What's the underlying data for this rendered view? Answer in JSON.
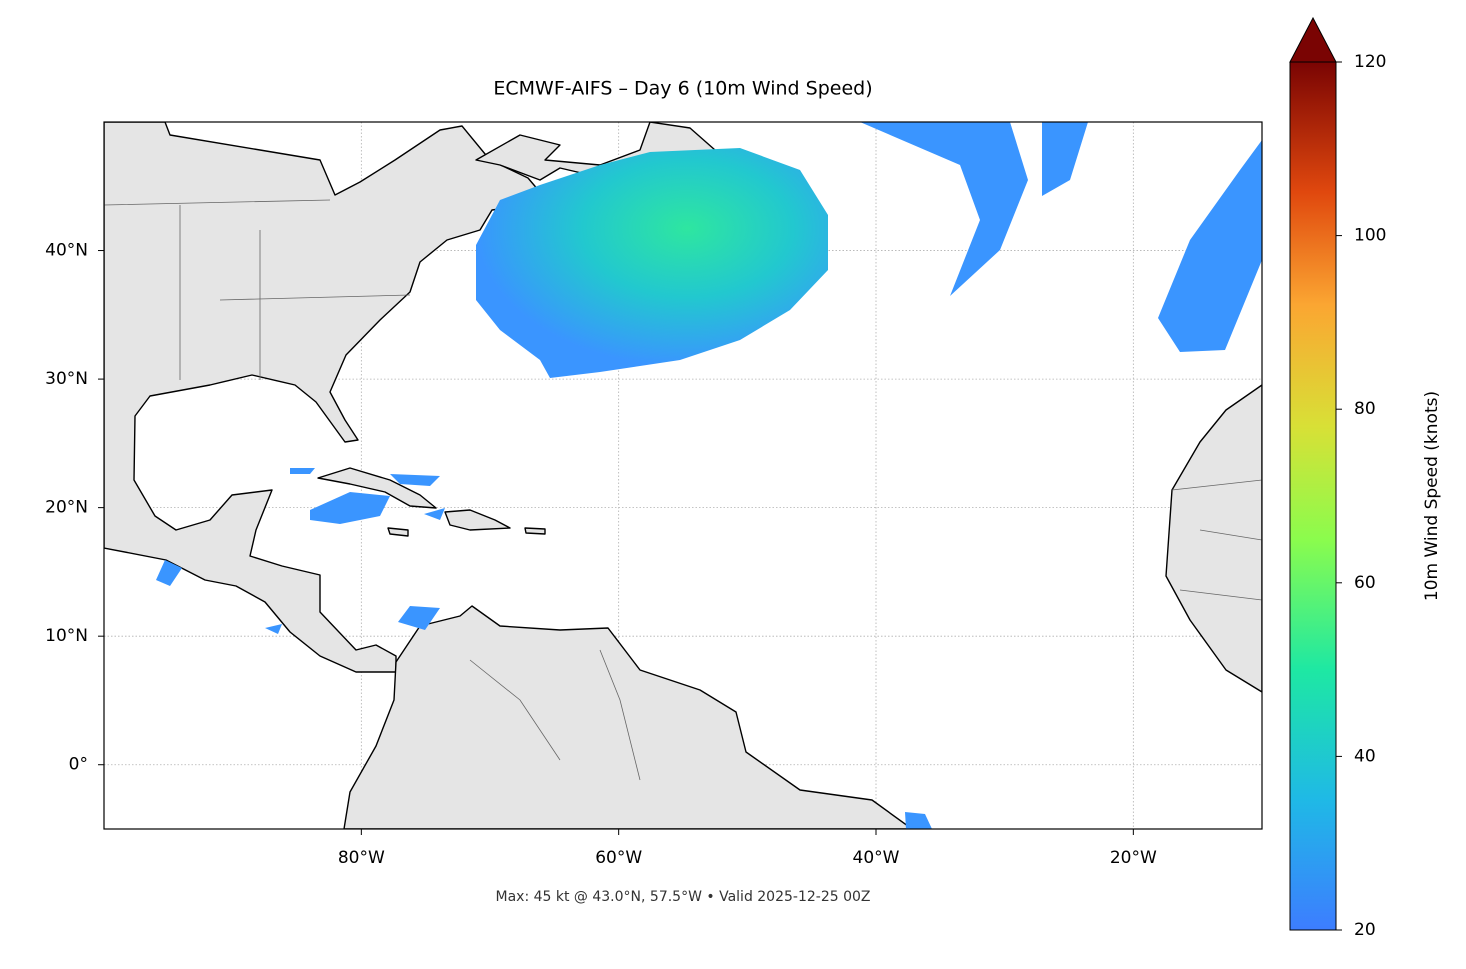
{
  "map": {
    "title": "ECMWF-AIFS – Day 6 (10m Wind Speed)",
    "footnote": "Max: 45 kt @ 43.0°N, 57.5°W • Valid 2025-12-25 00Z",
    "xlim": [
      -100,
      -10
    ],
    "ylim": [
      -5,
      50
    ],
    "xticks": [
      {
        "value": -80,
        "label": "80°W"
      },
      {
        "value": -60,
        "label": "60°W"
      },
      {
        "value": -40,
        "label": "40°W"
      },
      {
        "value": -20,
        "label": "20°W"
      }
    ],
    "yticks": [
      {
        "value": 0,
        "label": "0°"
      },
      {
        "value": 10,
        "label": "10°N"
      },
      {
        "value": 20,
        "label": "20°N"
      },
      {
        "value": 30,
        "label": "30°N"
      },
      {
        "value": 40,
        "label": "40°N"
      }
    ],
    "grid": true,
    "colorbar": {
      "label": "10m Wind Speed (knots)",
      "lim": [
        20,
        120
      ],
      "ticks": [
        20,
        40,
        60,
        80,
        100,
        120
      ]
    }
  }
}
